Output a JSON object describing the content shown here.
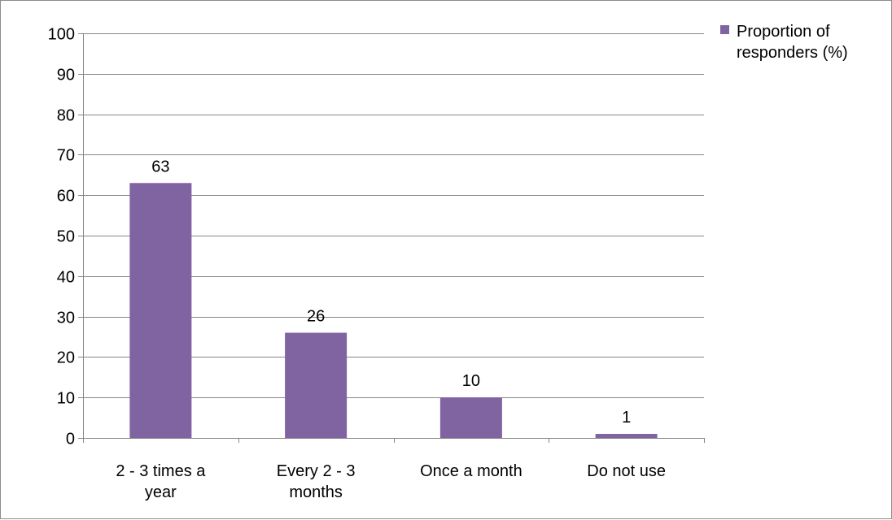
{
  "chart_data": {
    "type": "bar",
    "categories": [
      [
        "2 - 3 times a",
        "year"
      ],
      [
        "Every 2 - 3",
        "months"
      ],
      [
        "Once a month"
      ],
      [
        "Do not use"
      ]
    ],
    "series": [
      {
        "name": [
          "Proportion of",
          "responders (%)"
        ],
        "values": [
          63,
          26,
          10,
          1
        ],
        "color": "#8064a2"
      }
    ],
    "ylim": [
      0,
      100
    ],
    "yticks": [
      0,
      10,
      20,
      30,
      40,
      50,
      60,
      70,
      80,
      90,
      100
    ],
    "grid": true,
    "data_labels": true,
    "legend": "top-right"
  }
}
